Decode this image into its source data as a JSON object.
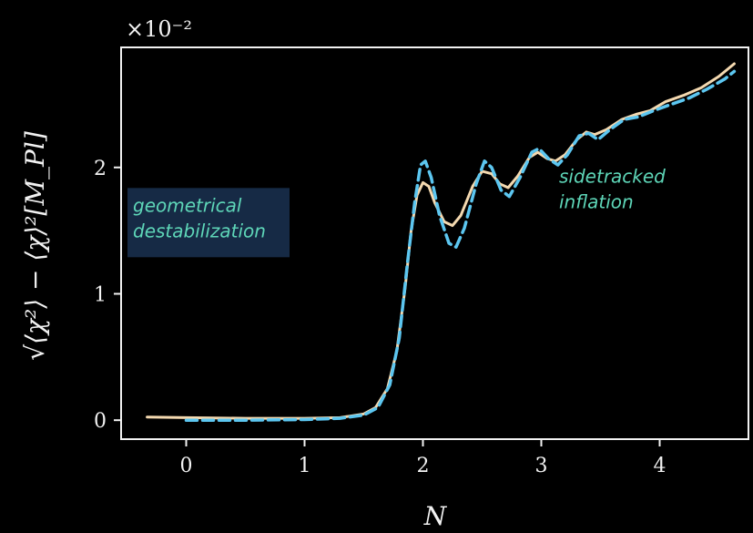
{
  "chart_data": {
    "type": "line",
    "xlabel": "N",
    "ylabel": "√⟨χ²⟩ − ⟨χ⟩²[M_Pl]",
    "y_multiplier": "×10⁻²",
    "xlim": [
      -0.55,
      4.75
    ],
    "ylim": [
      -0.15,
      2.95
    ],
    "x_ticks": [
      0,
      1,
      2,
      3,
      4
    ],
    "y_ticks": [
      0,
      1,
      2
    ],
    "grid": false,
    "background": "#000000",
    "series": [
      {
        "color": "#f4d9b0",
        "style": "solid",
        "points": [
          [
            -0.33,
            0.025
          ],
          [
            0.0,
            0.02
          ],
          [
            0.5,
            0.015
          ],
          [
            1.0,
            0.015
          ],
          [
            1.3,
            0.02
          ],
          [
            1.5,
            0.05
          ],
          [
            1.6,
            0.1
          ],
          [
            1.7,
            0.25
          ],
          [
            1.78,
            0.55
          ],
          [
            1.85,
            1.05
          ],
          [
            1.9,
            1.5
          ],
          [
            1.95,
            1.78
          ],
          [
            2.0,
            1.88
          ],
          [
            2.05,
            1.85
          ],
          [
            2.1,
            1.72
          ],
          [
            2.18,
            1.57
          ],
          [
            2.25,
            1.54
          ],
          [
            2.32,
            1.62
          ],
          [
            2.42,
            1.85
          ],
          [
            2.5,
            1.97
          ],
          [
            2.58,
            1.95
          ],
          [
            2.65,
            1.87
          ],
          [
            2.72,
            1.84
          ],
          [
            2.8,
            1.93
          ],
          [
            2.9,
            2.08
          ],
          [
            2.97,
            2.12
          ],
          [
            3.05,
            2.07
          ],
          [
            3.12,
            2.05
          ],
          [
            3.2,
            2.1
          ],
          [
            3.3,
            2.22
          ],
          [
            3.38,
            2.28
          ],
          [
            3.45,
            2.26
          ],
          [
            3.55,
            2.3
          ],
          [
            3.68,
            2.38
          ],
          [
            3.8,
            2.42
          ],
          [
            3.92,
            2.45
          ],
          [
            4.05,
            2.52
          ],
          [
            4.2,
            2.57
          ],
          [
            4.35,
            2.63
          ],
          [
            4.5,
            2.72
          ],
          [
            4.63,
            2.82
          ]
        ]
      },
      {
        "color": "#5cc6f0",
        "style": "dashed",
        "points": [
          [
            0.0,
            0.0
          ],
          [
            0.5,
            0.0
          ],
          [
            1.0,
            0.005
          ],
          [
            1.3,
            0.015
          ],
          [
            1.5,
            0.04
          ],
          [
            1.62,
            0.1
          ],
          [
            1.72,
            0.28
          ],
          [
            1.8,
            0.65
          ],
          [
            1.87,
            1.25
          ],
          [
            1.93,
            1.72
          ],
          [
            1.98,
            2.02
          ],
          [
            2.02,
            2.05
          ],
          [
            2.07,
            1.92
          ],
          [
            2.14,
            1.62
          ],
          [
            2.22,
            1.4
          ],
          [
            2.28,
            1.37
          ],
          [
            2.35,
            1.52
          ],
          [
            2.45,
            1.87
          ],
          [
            2.52,
            2.05
          ],
          [
            2.58,
            2.0
          ],
          [
            2.66,
            1.82
          ],
          [
            2.73,
            1.77
          ],
          [
            2.82,
            1.92
          ],
          [
            2.92,
            2.12
          ],
          [
            2.98,
            2.15
          ],
          [
            3.06,
            2.07
          ],
          [
            3.14,
            2.02
          ],
          [
            3.22,
            2.1
          ],
          [
            3.32,
            2.25
          ],
          [
            3.4,
            2.27
          ],
          [
            3.48,
            2.22
          ],
          [
            3.58,
            2.3
          ],
          [
            3.7,
            2.38
          ],
          [
            3.82,
            2.4
          ],
          [
            3.95,
            2.45
          ],
          [
            4.1,
            2.5
          ],
          [
            4.25,
            2.55
          ],
          [
            4.4,
            2.62
          ],
          [
            4.55,
            2.7
          ],
          [
            4.63,
            2.76
          ]
        ]
      }
    ],
    "annotations": [
      {
        "lines": [
          "geometrical",
          "destabilization"
        ],
        "color": "#5ed6b8",
        "box_color": "#162a45",
        "x": -0.45,
        "y": 1.65
      },
      {
        "lines": [
          "sidetracked",
          "inflation"
        ],
        "color": "#5ed6b8",
        "box_color": "",
        "x": 3.15,
        "y": 1.88
      }
    ]
  }
}
